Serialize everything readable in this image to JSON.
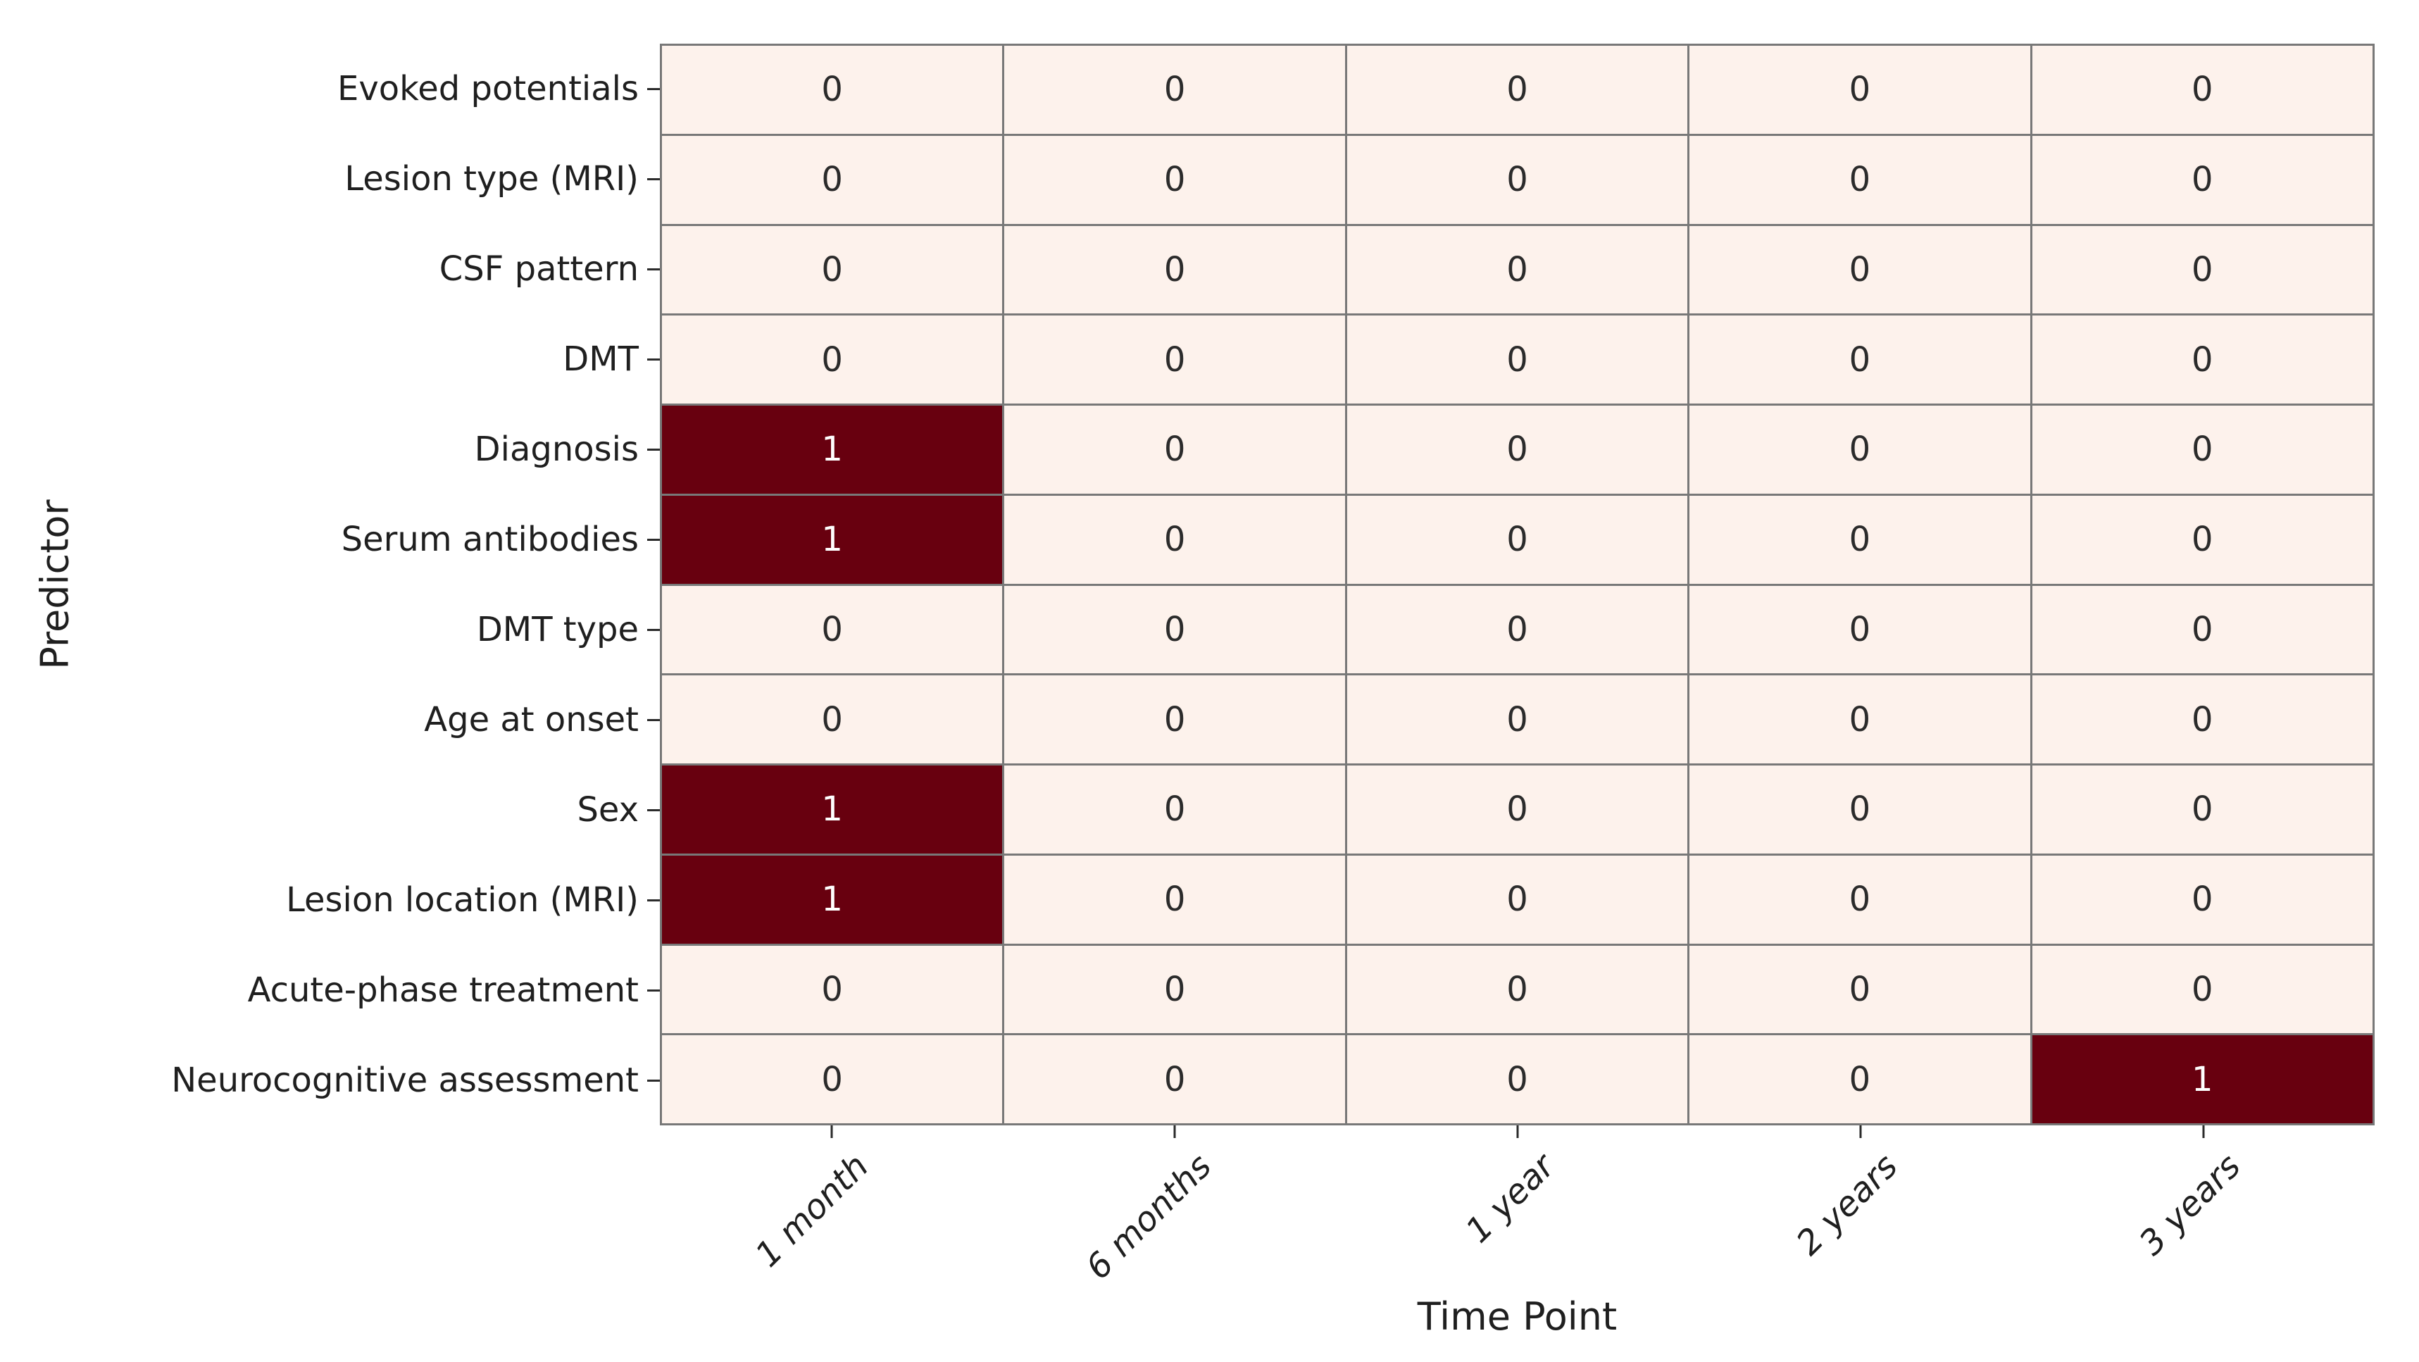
{
  "chart_data": {
    "type": "heatmap",
    "xlabel": "Time Point",
    "ylabel": "Predictor",
    "columns": [
      "1 month",
      "6 months",
      "1 year",
      "2 years",
      "3 years"
    ],
    "rows": [
      "Evoked potentials",
      "Lesion type (MRI)",
      "CSF pattern",
      "DMT",
      "Diagnosis",
      "Serum antibodies",
      "DMT type",
      "Age at onset",
      "Sex",
      "Lesion location (MRI)",
      "Acute-phase treatment",
      "Neurocognitive assessment"
    ],
    "values": [
      [
        0,
        0,
        0,
        0,
        0
      ],
      [
        0,
        0,
        0,
        0,
        0
      ],
      [
        0,
        0,
        0,
        0,
        0
      ],
      [
        0,
        0,
        0,
        0,
        0
      ],
      [
        1,
        0,
        0,
        0,
        0
      ],
      [
        1,
        0,
        0,
        0,
        0
      ],
      [
        0,
        0,
        0,
        0,
        0
      ],
      [
        0,
        0,
        0,
        0,
        0
      ],
      [
        1,
        0,
        0,
        0,
        0
      ],
      [
        1,
        0,
        0,
        0,
        0
      ],
      [
        0,
        0,
        0,
        0,
        0
      ],
      [
        0,
        0,
        0,
        0,
        1
      ]
    ],
    "value_range": [
      0,
      1
    ],
    "colorbar": false,
    "grid": true,
    "colors": {
      "cell_low": "#fdf2ec",
      "cell_high": "#68000f",
      "grid_line": "#787878",
      "text_on_low": "#2b2b2b",
      "text_on_high": "#ffffff",
      "tick": "#2b2b2b",
      "label_text": "#1f1f1f"
    }
  }
}
